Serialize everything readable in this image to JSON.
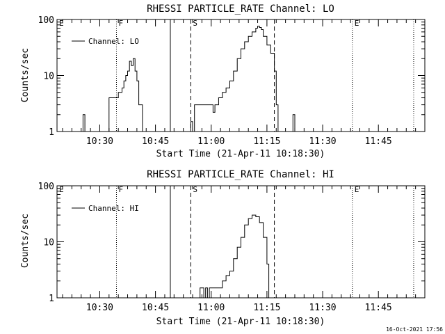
{
  "footer": {
    "timestamp": "16-Oct-2021 17:56"
  },
  "chart_data": [
    {
      "type": "line",
      "title": "RHESSI PARTICLE_RATE Channel: LO",
      "xlabel": "Start Time (21-Apr-11 10:18:30)",
      "ylabel": "Counts/sec",
      "yscale": "log",
      "ylim": [
        1,
        100
      ],
      "xlim": [
        "10:18:30",
        "11:57:30"
      ],
      "x_ticks": [
        "10:30",
        "10:45",
        "11:00",
        "11:15",
        "11:30",
        "11:45"
      ],
      "y_ticks": [
        "1",
        "10",
        "100"
      ],
      "legend": {
        "position": "top-left",
        "label": "Channel: LO"
      },
      "markers": [
        {
          "label": "E",
          "time": "10:18:30",
          "style": "dotted"
        },
        {
          "label": "F",
          "time": "10:34:30",
          "style": "dotted"
        },
        {
          "label": "",
          "time": "10:49:00",
          "style": "solid"
        },
        {
          "label": "S",
          "time": "10:54:30",
          "style": "dashed"
        },
        {
          "label": "",
          "time": "11:17:00",
          "style": "dashed"
        },
        {
          "label": "E",
          "time": "11:38:00",
          "style": "dotted"
        },
        {
          "label": "",
          "time": "11:54:30",
          "style": "dotted"
        }
      ],
      "series": [
        {
          "name": "Channel: LO",
          "x": [
            "10:25:00",
            "10:25:30",
            "10:26:00",
            "10:32:00",
            "10:32:30",
            "10:33:30",
            "10:34:30",
            "10:35:00",
            "10:35:30",
            "10:36:00",
            "10:36:30",
            "10:37:00",
            "10:37:30",
            "10:38:00",
            "10:38:30",
            "10:39:00",
            "10:39:30",
            "10:40:00",
            "10:40:30",
            "10:41:30",
            "10:42:00",
            "10:54:00",
            "10:54:30",
            "10:55:00",
            "10:55:30",
            "10:56:00",
            "10:57:00",
            "10:58:00",
            "10:59:00",
            "11:00:00",
            "11:00:30",
            "11:01:00",
            "11:01:30",
            "11:02:00",
            "11:02:30",
            "11:03:00",
            "11:04:00",
            "11:05:00",
            "11:06:00",
            "11:07:00",
            "11:08:00",
            "11:09:00",
            "11:10:00",
            "11:11:00",
            "11:12:00",
            "11:12:30",
            "11:13:00",
            "11:13:30",
            "11:14:00",
            "11:15:00",
            "11:16:00",
            "11:17:00",
            "11:17:30",
            "11:18:00",
            "11:21:30",
            "11:22:00",
            "11:22:30",
            "11:23:00"
          ],
          "y": [
            1,
            2,
            1,
            1,
            4,
            4,
            4,
            5,
            5,
            6,
            8,
            10,
            12,
            18,
            15,
            20,
            12,
            8,
            3,
            1,
            1,
            1,
            1.5,
            1,
            3,
            3,
            3,
            3,
            3,
            3,
            2.2,
            3,
            3,
            4,
            4,
            5,
            6,
            8,
            12,
            20,
            30,
            40,
            50,
            60,
            70,
            76,
            72,
            66,
            50,
            35,
            25,
            12,
            3,
            1,
            1,
            2,
            1,
            1
          ]
        }
      ]
    },
    {
      "type": "line",
      "title": "RHESSI PARTICLE_RATE Channel: HI",
      "xlabel": "Start Time (21-Apr-11 10:18:30)",
      "ylabel": "Counts/sec",
      "yscale": "log",
      "ylim": [
        1,
        100
      ],
      "xlim": [
        "10:18:30",
        "11:57:30"
      ],
      "x_ticks": [
        "10:30",
        "10:45",
        "11:00",
        "11:15",
        "11:30",
        "11:45"
      ],
      "y_ticks": [
        "1",
        "10",
        "100"
      ],
      "legend": {
        "position": "top-left",
        "label": "Channel: HI"
      },
      "markers": [
        {
          "label": "E",
          "time": "10:18:30",
          "style": "dotted"
        },
        {
          "label": "F",
          "time": "10:34:30",
          "style": "dotted"
        },
        {
          "label": "",
          "time": "10:49:00",
          "style": "solid"
        },
        {
          "label": "S",
          "time": "10:54:30",
          "style": "dashed"
        },
        {
          "label": "",
          "time": "11:17:00",
          "style": "dashed"
        },
        {
          "label": "E",
          "time": "11:38:00",
          "style": "dotted"
        },
        {
          "label": "",
          "time": "11:54:30",
          "style": "dotted"
        }
      ],
      "series": [
        {
          "name": "Channel: HI",
          "x": [
            "10:56:30",
            "10:57:00",
            "10:57:30",
            "10:58:00",
            "10:58:30",
            "10:59:00",
            "10:59:30",
            "11:00:00",
            "11:02:00",
            "11:03:00",
            "11:04:00",
            "11:05:00",
            "11:06:00",
            "11:07:00",
            "11:08:00",
            "11:09:00",
            "11:10:00",
            "11:11:00",
            "11:12:00",
            "11:13:00",
            "11:14:00",
            "11:15:00",
            "11:15:30"
          ],
          "y": [
            1,
            1.5,
            1.5,
            1,
            1.5,
            1,
            1.5,
            1.5,
            1.5,
            2,
            2.5,
            3,
            5,
            8,
            12,
            20,
            26,
            30,
            28,
            22,
            12,
            4,
            1
          ]
        }
      ]
    }
  ]
}
